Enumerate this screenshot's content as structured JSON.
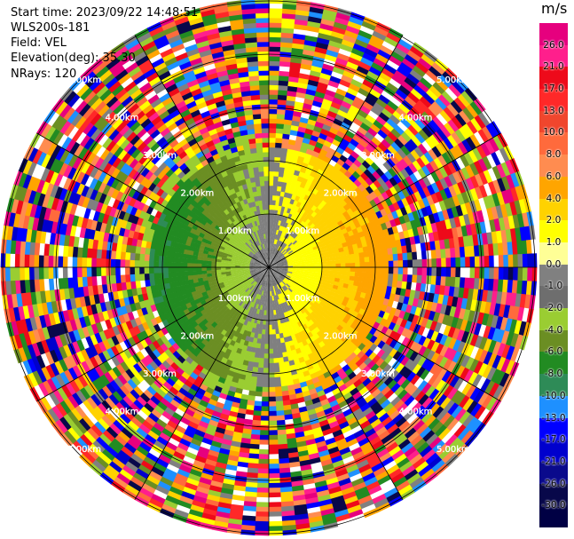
{
  "header": {
    "start_time": "Start time: 2023/09/22 14:48:51",
    "instrument": "WLS200s-181",
    "field": "Field: VEL",
    "elevation": "Elevation(deg): 35.30",
    "nrays": "NRays: 120"
  },
  "colorbar": {
    "unit": "m/s",
    "levels": [
      "26.0",
      "21.0",
      "17.0",
      "13.0",
      "10.0",
      "8.0",
      "6.0",
      "4.0",
      "2.0",
      "1.0",
      "0.0",
      "-1.0",
      "-2.0",
      "-4.0",
      "-6.0",
      "-8.0",
      "-10.0",
      "-13.0",
      "-17.0",
      "-21.0",
      "-26.0",
      "-30.0"
    ],
    "colors": [
      "#e6007e",
      "#ff1f8c",
      "#ee0a1a",
      "#ff2828",
      "#f0462d",
      "#ff6a3c",
      "#ff8c50",
      "#ffa500",
      "#ffd200",
      "#ffff00",
      "#ffff96",
      "#808080",
      "#6e6e6e",
      "#9acd32",
      "#6b8e23",
      "#228b22",
      "#2e8b57",
      "#1e90ff",
      "#0000ff",
      "#0000cd",
      "#0a0a8c",
      "#08084a",
      "#000044"
    ]
  },
  "chart_data": {
    "type": "heatmap",
    "projection": "polar PPI",
    "field": "VEL",
    "unit": "m/s",
    "nrays": 120,
    "range_rings_km": [
      1.0,
      2.0,
      3.0,
      4.0,
      5.0
    ],
    "range_ring_labels": [
      "1.00km",
      "2.00km",
      "3.00km",
      "4.00km",
      "5.00km"
    ],
    "description": "Radial velocity PPI scan; coherent signal within ~2.2 km (negative/approaching on west side, positive/receding on east side), noisy random values beyond."
  }
}
